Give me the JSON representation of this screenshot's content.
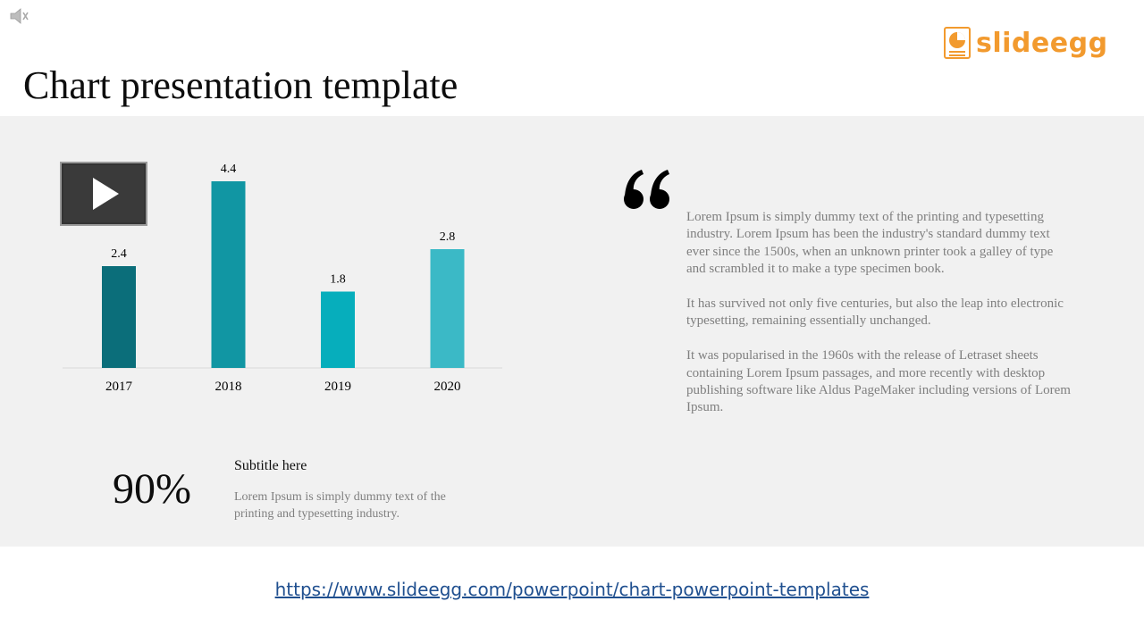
{
  "header": {
    "title": "Chart presentation template",
    "logo_text": "slideegg",
    "logo_color": "#f29a2e"
  },
  "icons": {
    "speaker": "speaker-icon",
    "video_play": "play-icon",
    "quote": "quote-icon"
  },
  "chart_data": {
    "type": "bar",
    "categories": [
      "2017",
      "2018",
      "2019",
      "2020"
    ],
    "values": [
      2.4,
      4.4,
      1.8,
      2.8
    ],
    "colors": [
      "#0b6e7a",
      "#1196a3",
      "#06aebc",
      "#3bb9c6"
    ],
    "title": "",
    "xlabel": "",
    "ylabel": "",
    "ylim": [
      0,
      4.8
    ],
    "grid": false,
    "legend": "none",
    "data_labels": true
  },
  "quote": {
    "paragraphs": [
      "Lorem Ipsum is simply dummy text of the printing and typesetting industry. Lorem Ipsum has been the industry's standard dummy text ever since the 1500s, when an unknown printer took a galley of type and scrambled it to make a type specimen book.",
      "It has survived not only five centuries, but also the leap into electronic typesetting, remaining essentially unchanged.",
      "It was popularised in the 1960s with the release of Letraset sheets containing Lorem Ipsum passages, and more recently with desktop publishing software like Aldus PageMaker including versions of Lorem Ipsum."
    ]
  },
  "stat": {
    "value": "90%",
    "subtitle": "Subtitle here",
    "description": "Lorem Ipsum is simply dummy text of the printing and typesetting industry."
  },
  "footer": {
    "link_text": "https://www.slideegg.com/powerpoint/chart-powerpoint-templates",
    "link_color": "#1f4f8f"
  }
}
